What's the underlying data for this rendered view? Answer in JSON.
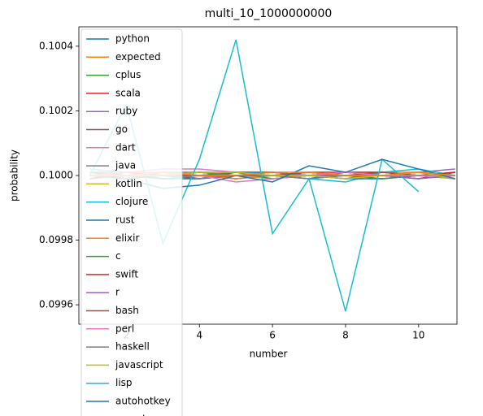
{
  "chart_data": {
    "type": "line",
    "title": "multi_10_1000000000",
    "xlabel": "number",
    "ylabel": "probability",
    "x": [
      1,
      2,
      3,
      4,
      5,
      6,
      7,
      8,
      9,
      10,
      11
    ],
    "xlim": [
      0.7,
      11.05
    ],
    "xticks": [
      2,
      4,
      6,
      8,
      10
    ],
    "ylim": [
      0.09954,
      0.10046
    ],
    "yticks": [
      0.0996,
      0.0998,
      {
        "value": 0.1,
        "label": "0.1000"
      },
      0.1002,
      0.1004
    ],
    "legend": "upper left",
    "series": [
      {
        "name": "python",
        "color": "#1f77b4",
        "values": [
          0.10001,
          0.1,
          0.09999,
          0.1,
          0.10001,
          0.1,
          0.09999,
          0.10001,
          0.1,
          0.09999,
          0.10001
        ]
      },
      {
        "name": "expected",
        "color": "#ff7f0e",
        "values": [
          0.1,
          0.1,
          0.1,
          0.1,
          0.1,
          0.1,
          0.1,
          0.1,
          0.1,
          0.1,
          0.1
        ]
      },
      {
        "name": "cplus",
        "color": "#2ca02c",
        "values": [
          0.1,
          0.10001,
          0.1,
          0.09999,
          0.1,
          0.10001,
          0.1,
          0.09999,
          0.10001,
          0.1,
          0.1
        ]
      },
      {
        "name": "scala",
        "color": "#d62728",
        "values": [
          0.09999,
          0.1,
          0.10001,
          0.1,
          0.09999,
          0.1,
          0.10001,
          0.10001,
          0.1,
          0.09999,
          0.10001
        ]
      },
      {
        "name": "ruby",
        "color": "#9467bd",
        "values": [
          0.1,
          0.09999,
          0.1,
          0.10001,
          0.10001,
          0.1,
          0.09999,
          0.1,
          0.1,
          0.10001,
          0.10002
        ]
      },
      {
        "name": "go",
        "color": "#8c564b",
        "values": [
          0.10001,
          0.10001,
          0.1,
          0.09999,
          0.1,
          0.09999,
          0.1,
          0.10001,
          0.1,
          0.1,
          0.09999
        ]
      },
      {
        "name": "dart",
        "color": "#e377c2",
        "values": [
          0.1,
          0.10001,
          0.10002,
          0.10002,
          0.10001,
          0.10001,
          0.1,
          0.09999,
          0.1,
          0.1,
          0.09999
        ]
      },
      {
        "name": "java",
        "color": "#7f7f7f",
        "values": [
          0.09999,
          0.1,
          0.1,
          0.10001,
          0.1,
          0.1,
          0.10001,
          0.1,
          0.09999,
          0.1,
          0.10001
        ]
      },
      {
        "name": "kotlin",
        "color": "#bcbd22",
        "values": [
          0.1,
          0.1,
          0.10001,
          0.1,
          0.1,
          0.09999,
          0.1,
          0.10001,
          0.10001,
          0.1,
          0.09999
        ]
      },
      {
        "name": "clojure",
        "color": "#17becf",
        "values": [
          0.10002,
          0.10001,
          0.09999,
          0.1,
          0.10001,
          0.1,
          0.09999,
          0.09998,
          0.10001,
          0.10002,
          0.1
        ]
      },
      {
        "name": "rust",
        "color": "#1f77b4",
        "values": [
          0.1,
          0.1,
          0.09999,
          0.09999,
          0.10001,
          0.10001,
          0.1,
          0.09999,
          0.09999,
          0.1,
          0.10001
        ]
      },
      {
        "name": "elixir",
        "color": "#ff7f0e",
        "values": [
          0.1,
          0.10001,
          0.1,
          0.1,
          0.09999,
          0.1,
          0.10001,
          0.1,
          0.10001,
          0.10001,
          0.09999
        ]
      },
      {
        "name": "c",
        "color": "#2ca02c",
        "values": [
          0.10001,
          0.1,
          0.1,
          0.1,
          0.10001,
          0.09999,
          0.1,
          0.1,
          0.09999,
          0.1,
          0.1
        ]
      },
      {
        "name": "swift",
        "color": "#d62728",
        "values": [
          0.09999,
          0.10001,
          0.1,
          0.10001,
          0.1,
          0.1,
          0.1,
          0.10001,
          0.10001,
          0.1,
          0.10001
        ]
      },
      {
        "name": "r",
        "color": "#9467bd",
        "values": [
          0.1,
          0.1,
          0.10001,
          0.09999,
          0.1,
          0.10001,
          0.1,
          0.1,
          0.1,
          0.09999,
          0.1
        ]
      },
      {
        "name": "bash",
        "color": "#8c564b",
        "values": [
          0.10001,
          0.09999,
          0.1,
          0.1,
          0.1,
          0.1,
          0.10001,
          0.1,
          0.10001,
          0.1,
          0.1
        ]
      },
      {
        "name": "perl",
        "color": "#e377c2",
        "values": [
          0.1,
          0.10001,
          0.10001,
          0.1,
          0.09998,
          0.09999,
          0.1,
          0.10001,
          0.1,
          0.1,
          0.1
        ]
      },
      {
        "name": "haskell",
        "color": "#7f7f7f",
        "values": [
          0.1,
          0.09999,
          0.10001,
          0.10001,
          0.1,
          0.1,
          0.09999,
          0.1,
          0.1,
          0.10001,
          0.1
        ]
      },
      {
        "name": "javascript",
        "color": "#bcbd22",
        "values": [
          0.1,
          0.1,
          0.1,
          0.10001,
          0.10001,
          0.1,
          0.1,
          0.09999,
          0.1,
          0.10001,
          0.09999
        ]
      },
      {
        "name": "lisp",
        "color": "#17becf",
        "values": [
          0.1,
          0.10022,
          0.09979,
          0.10005,
          0.10042,
          0.09982,
          0.09999,
          0.09958,
          0.10005,
          0.09995,
          null
        ]
      },
      {
        "name": "autohotkey",
        "color": "#1f77b4",
        "values": [
          0.1,
          0.09999,
          0.09996,
          0.09997,
          0.1,
          0.09998,
          0.10003,
          0.10001,
          0.10005,
          0.10002,
          0.09999
        ]
      },
      {
        "name": "ocaml",
        "color": "#ff7f0e",
        "values": [
          0.1,
          0.1,
          0.10001,
          0.1,
          0.1,
          0.10001,
          0.10001,
          0.1,
          0.1,
          0.10001,
          0.1
        ]
      }
    ]
  }
}
